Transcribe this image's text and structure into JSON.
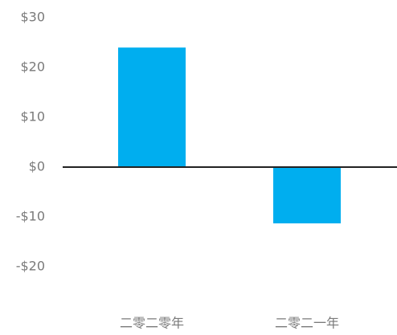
{
  "chart_data": {
    "type": "bar",
    "categories": [
      "二零二零年",
      "二零二一年"
    ],
    "values": [
      24,
      -11.3
    ],
    "color": "#00aeef",
    "ylim": [
      -20,
      30
    ],
    "yticks": [
      {
        "value": 30,
        "label": "$30"
      },
      {
        "value": 20,
        "label": "$20"
      },
      {
        "value": 10,
        "label": "$10"
      },
      {
        "value": 0,
        "label": "$0"
      },
      {
        "value": -10,
        "label": "-$10"
      },
      {
        "value": -20,
        "label": "-$20"
      }
    ],
    "grid": false
  }
}
